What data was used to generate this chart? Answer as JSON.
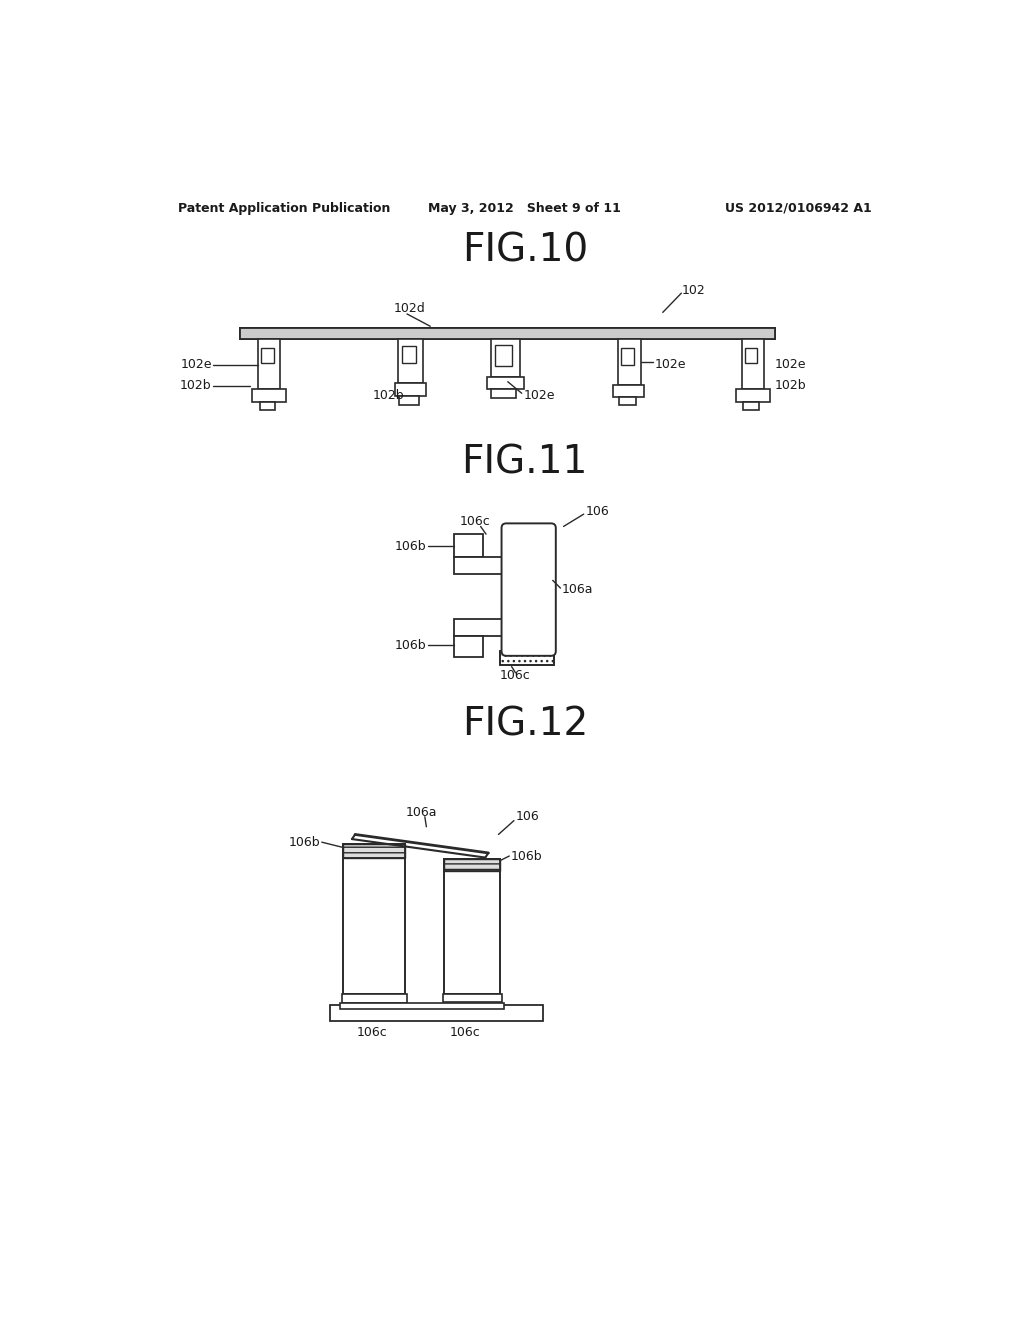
{
  "background_color": "#ffffff",
  "header_left": "Patent Application Publication",
  "header_center": "May 3, 2012   Sheet 9 of 11",
  "header_right": "US 2012/0106942 A1",
  "fig10_title": "FIG.10",
  "fig11_title": "FIG.11",
  "fig12_title": "FIG.12",
  "line_color": "#2a2a2a",
  "text_color": "#1a1a1a"
}
